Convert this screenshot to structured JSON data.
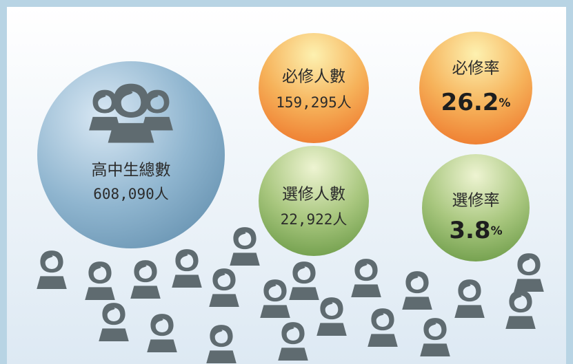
{
  "total": {
    "label": "高中生總數",
    "value": "608,090人"
  },
  "required": {
    "label": "必修人數",
    "value": "159,295人"
  },
  "required_rate": {
    "label": "必修率",
    "number": "26.2",
    "unit": "%"
  },
  "elective": {
    "label": "選修人數",
    "value": "22,922人"
  },
  "elective_rate": {
    "label": "選修率",
    "number": "3.8",
    "unit": "%"
  }
}
